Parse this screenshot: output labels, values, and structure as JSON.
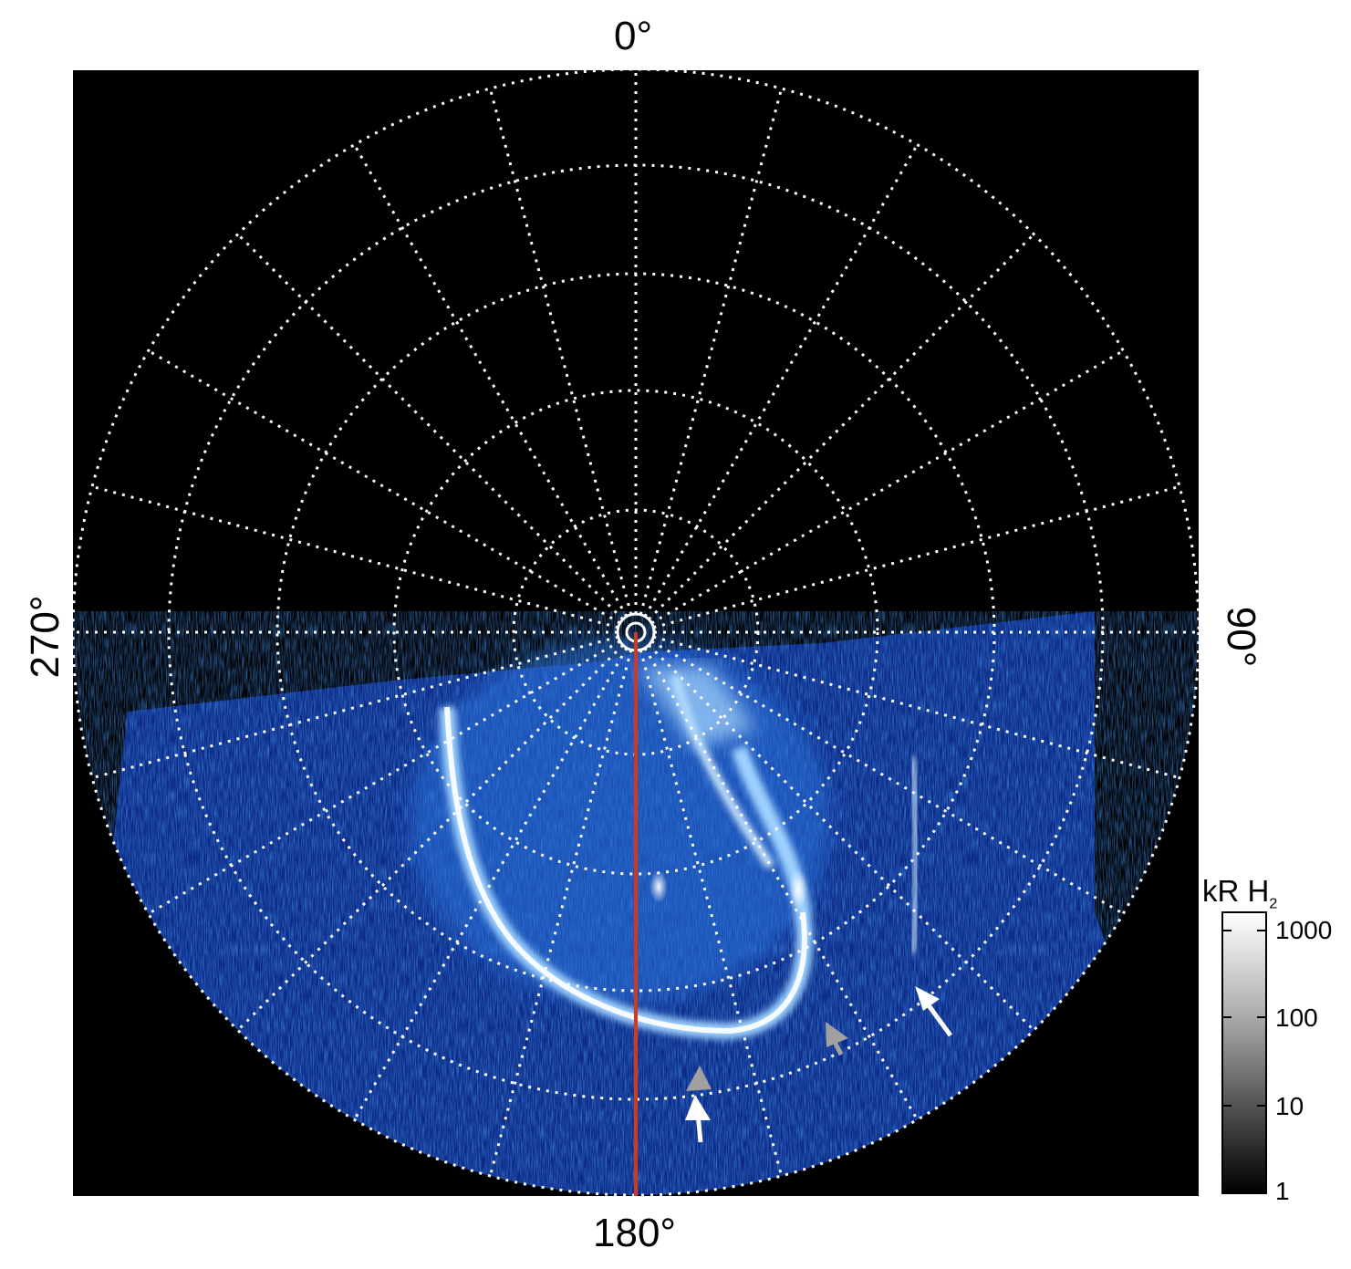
{
  "figure": {
    "longitude_labels": {
      "top": "0°",
      "right": "90°",
      "bottom": "180°",
      "left": "270°"
    },
    "colorbar": {
      "title": "kR H",
      "title_subscript": "2",
      "ticks": [
        "1000",
        "100",
        "10",
        "1"
      ],
      "colors": [
        "#ffffff",
        "#000000"
      ]
    },
    "colors": {
      "background": "#000000",
      "grid": "#ffffff",
      "aurora_dim": "#1a3fa8",
      "aurora_mid": "#2f78e0",
      "aurora_bright": "#bfe3ff",
      "meridian_line": "#d4381a",
      "arrow_white": "#ffffff",
      "arrow_grey": "#a0a0a0"
    },
    "icons": [
      "arrow-white-icon",
      "arrow-grey-icon"
    ]
  }
}
